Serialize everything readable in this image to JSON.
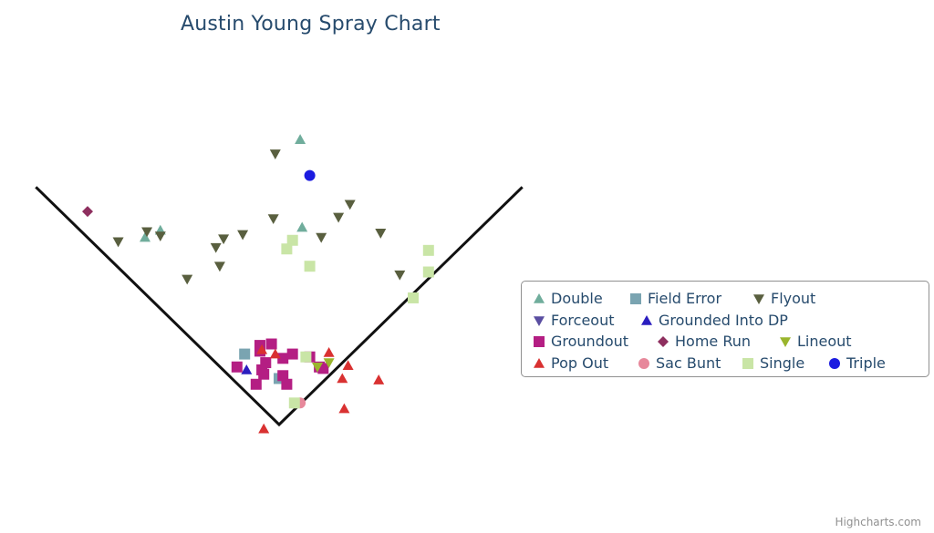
{
  "credits": "Highcharts.com",
  "chart_data": {
    "type": "scatter",
    "title": "Austin Young Spray Chart",
    "grid": false,
    "legend_placement": "right",
    "xlim": [
      -100,
      350
    ],
    "ylim": [
      -12,
      240
    ],
    "foul_lines": [
      [
        -127,
        165
      ],
      [
        0,
        0
      ],
      [
        127,
        165
      ]
    ],
    "series": [
      {
        "name": "Double",
        "color": "#70ad9c",
        "marker": "triangle",
        "points": [
          [
            -70,
            130
          ],
          [
            -62,
            135
          ],
          [
            12,
            137
          ],
          [
            11,
            198
          ]
        ]
      },
      {
        "name": "Field Error",
        "color": "#7aa4b1",
        "marker": "square",
        "points": [
          [
            -18,
            49
          ],
          [
            0,
            32
          ]
        ]
      },
      {
        "name": "Flyout",
        "color": "#595f3f",
        "marker": "triangle-down",
        "points": [
          [
            -2,
            188
          ],
          [
            -69,
            134
          ],
          [
            -62,
            131
          ],
          [
            -84,
            127
          ],
          [
            -19,
            132
          ],
          [
            -33,
            123
          ],
          [
            -29,
            129
          ],
          [
            -31,
            110
          ],
          [
            -48,
            101
          ],
          [
            -3,
            143
          ],
          [
            22,
            130
          ],
          [
            31,
            144
          ],
          [
            37,
            153
          ],
          [
            53,
            133
          ],
          [
            63,
            104
          ]
        ]
      },
      {
        "name": "Forceout",
        "color": "#5a4ea1",
        "marker": "triangle-down",
        "points": []
      },
      {
        "name": "Grounded Into DP",
        "color": "#2b1ebf",
        "marker": "triangle",
        "points": [
          [
            -17,
            38
          ]
        ]
      },
      {
        "name": "Groundout",
        "color": "#b41e83",
        "marker": "square",
        "points": [
          [
            -10,
            55
          ],
          [
            -4,
            56
          ],
          [
            -10,
            51
          ],
          [
            -7,
            43
          ],
          [
            2,
            46
          ],
          [
            7,
            49
          ],
          [
            16,
            47
          ],
          [
            21,
            40
          ],
          [
            23,
            39
          ],
          [
            -22,
            40
          ],
          [
            -9,
            38
          ],
          [
            -8,
            35
          ],
          [
            2,
            34
          ],
          [
            -12,
            28
          ],
          [
            4,
            28
          ]
        ]
      },
      {
        "name": "Home Run",
        "color": "#8e2f5f",
        "marker": "diamond",
        "points": [
          [
            -100,
            148
          ]
        ]
      },
      {
        "name": "Lineout",
        "color": "#9ab52d",
        "marker": "triangle-down",
        "points": [
          [
            26,
            43
          ],
          [
            20,
            40
          ]
        ]
      },
      {
        "name": "Pop Out",
        "color": "#d93131",
        "marker": "triangle",
        "points": [
          [
            -9,
            52
          ],
          [
            -2,
            49
          ],
          [
            26,
            50
          ],
          [
            36,
            41
          ],
          [
            33,
            32
          ],
          [
            52,
            31
          ],
          [
            34,
            11
          ],
          [
            -8,
            -3
          ]
        ]
      },
      {
        "name": "Sac Bunt",
        "color": "#e7889b",
        "marker": "circle",
        "points": [
          [
            11,
            15
          ]
        ]
      },
      {
        "name": "Single",
        "color": "#c9e5a6",
        "marker": "square",
        "points": [
          [
            7,
            128
          ],
          [
            4,
            122
          ],
          [
            16,
            110
          ],
          [
            78,
            121
          ],
          [
            78,
            106
          ],
          [
            70,
            88
          ],
          [
            14,
            47
          ],
          [
            8,
            15
          ]
        ]
      },
      {
        "name": "Triple",
        "color": "#1b1be0",
        "marker": "circle",
        "points": [
          [
            16,
            173
          ]
        ]
      }
    ]
  }
}
